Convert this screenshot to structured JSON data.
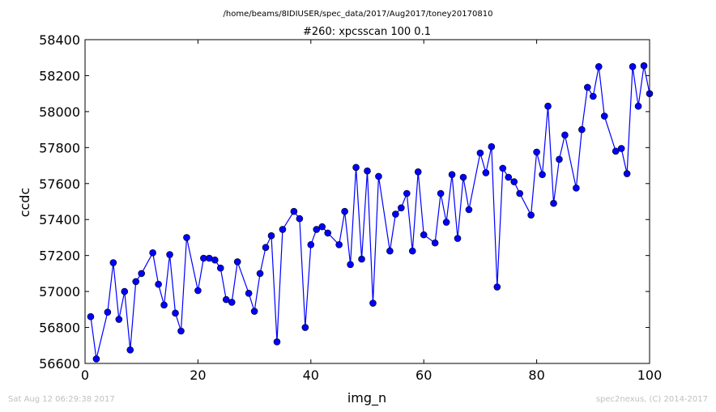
{
  "chart_data": {
    "type": "line",
    "path_title": "/home/beams/8IDIUSER/spec_data/2017/Aug2017/toney20170810",
    "title": "#260: xpcsscan 100 0.1",
    "xlabel": "img_n",
    "ylabel": "ccdc",
    "xlim": [
      0,
      100
    ],
    "ylim": [
      56600,
      58400
    ],
    "xticks": [
      0,
      20,
      40,
      60,
      80,
      100
    ],
    "yticks": [
      56600,
      56800,
      57000,
      57200,
      57400,
      57600,
      57800,
      58000,
      58200,
      58400
    ],
    "grid": false,
    "line_color": "#0000ff",
    "marker_color": "#0000ff",
    "series": [
      {
        "x": [
          1,
          2,
          4,
          5,
          6,
          7,
          8,
          9,
          10,
          12,
          13,
          14,
          15,
          16,
          17,
          18,
          20,
          21,
          22,
          23,
          24,
          25,
          26,
          27,
          29,
          30,
          31,
          32,
          33,
          34,
          35,
          37,
          38,
          39,
          40,
          41,
          42,
          43,
          45,
          46,
          47,
          48,
          49,
          50,
          51,
          52,
          54,
          55,
          56,
          57,
          58,
          59,
          60,
          62,
          63,
          64,
          65,
          66,
          67,
          68,
          70,
          71,
          72,
          73,
          74,
          75,
          76,
          77,
          79,
          80,
          81,
          82,
          83,
          84,
          85,
          87,
          88,
          89,
          90,
          91,
          92,
          94,
          95,
          96,
          97,
          98,
          99,
          100
        ],
        "y": [
          56860,
          56625,
          56885,
          57160,
          56845,
          57000,
          56675,
          57055,
          57100,
          57215,
          57040,
          56925,
          57205,
          56880,
          56780,
          57300,
          57005,
          57185,
          57185,
          57175,
          57130,
          56955,
          56940,
          57165,
          56990,
          56890,
          57100,
          57245,
          57310,
          56720,
          57345,
          57445,
          57405,
          56800,
          57260,
          57345,
          57360,
          57325,
          57260,
          57445,
          57150,
          57690,
          57180,
          57670,
          56935,
          57640,
          57225,
          57430,
          57465,
          57545,
          57225,
          57665,
          57315,
          57270,
          57545,
          57385,
          57650,
          57295,
          57635,
          57455,
          57770,
          57660,
          57805,
          57025,
          57685,
          57635,
          57610,
          57545,
          57425,
          57775,
          57650,
          58030,
          57490,
          57735,
          57870,
          57575,
          57900,
          58135,
          58085,
          58250,
          57975,
          57780,
          57795,
          57655,
          58250,
          58030,
          58255,
          58100
        ]
      }
    ]
  },
  "footer": {
    "left": "Sat Aug 12 06:29:38 2017",
    "right": "spec2nexus, (C) 2014-2017"
  }
}
